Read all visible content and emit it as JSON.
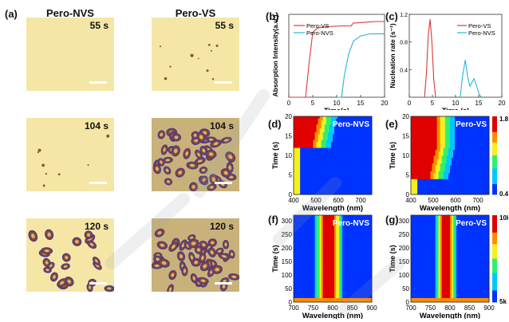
{
  "panel_a": {
    "label": "(a)",
    "columns": [
      "Pero-NVS",
      "Pero-VS"
    ],
    "rows": [
      {
        "time": "55 s",
        "nvs_crystal_coverage": 0.0,
        "vs_crystal_coverage": 0.05
      },
      {
        "time": "104 s",
        "nvs_crystal_coverage": 0.02,
        "vs_crystal_coverage": 0.9
      },
      {
        "time": "120 s",
        "nvs_crystal_coverage": 0.6,
        "vs_crystal_coverage": 0.95
      }
    ]
  },
  "panel_labels": {
    "b": "(b)",
    "c": "(c)",
    "d": "(d)",
    "e": "(e)",
    "f": "(f)",
    "g": "(g)"
  },
  "chart_data": [
    {
      "id": "b",
      "type": "line",
      "xlabel": "Time(s)",
      "ylabel": "Absorption Intensity(a.u.)",
      "xlim": [
        0,
        20
      ],
      "xticks": [
        "0",
        "5",
        "10",
        "15",
        "20"
      ],
      "series": [
        {
          "name": "Pero-VS",
          "color": "#d63a3a",
          "points": [
            [
              0,
              0
            ],
            [
              3.5,
              0
            ],
            [
              4.2,
              0.45
            ],
            [
              5,
              0.9
            ],
            [
              6,
              0.96
            ],
            [
              8,
              0.98
            ],
            [
              11,
              0.99
            ],
            [
              13,
              0.99
            ],
            [
              13.5,
              1.03
            ],
            [
              16,
              1.04
            ],
            [
              18,
              1.05
            ],
            [
              20,
              1.05
            ]
          ]
        },
        {
          "name": "Pero-NVS",
          "color": "#27b6d6",
          "points": [
            [
              10,
              0
            ],
            [
              11,
              0
            ],
            [
              11.6,
              0.3
            ],
            [
              12.5,
              0.6
            ],
            [
              13.5,
              0.78
            ],
            [
              15,
              0.85
            ],
            [
              17,
              0.88
            ],
            [
              20,
              0.88
            ]
          ]
        }
      ]
    },
    {
      "id": "c",
      "type": "line",
      "xlabel": "Time (s)",
      "ylabel": "Nucleation rate (s⁻¹)",
      "xlim": [
        0,
        20
      ],
      "ylim": [
        0,
        1.2
      ],
      "xticks": [
        "0",
        "5",
        "10",
        "15",
        "20"
      ],
      "yticks": [
        "0.4",
        "0.8",
        "1.2"
      ],
      "series": [
        {
          "name": "Pero-VS",
          "color": "#d63a3a",
          "points": [
            [
              3.3,
              0
            ],
            [
              3.7,
              0.35
            ],
            [
              4.1,
              0.9
            ],
            [
              4.5,
              1.13
            ],
            [
              4.9,
              0.8
            ],
            [
              5.3,
              0.25
            ],
            [
              5.7,
              0
            ]
          ]
        },
        {
          "name": "Pero-NVS",
          "color": "#27b6d6",
          "points": [
            [
              11,
              0
            ],
            [
              11.5,
              0.3
            ],
            [
              12.1,
              0.54
            ],
            [
              12.6,
              0.3
            ],
            [
              13.1,
              0.16
            ],
            [
              14,
              0.27
            ],
            [
              14.6,
              0.15
            ],
            [
              15.2,
              0.03
            ],
            [
              15.6,
              0
            ]
          ]
        }
      ]
    },
    {
      "id": "d",
      "type": "heatmap",
      "annotation": "Pero-NVS",
      "xlabel": "Wavelength (nm)",
      "ylabel": "Time (s)",
      "xlim": [
        400,
        750
      ],
      "ylim": [
        0,
        20
      ],
      "xticks": [
        "400",
        "500",
        "600",
        "700"
      ],
      "yticks": [
        "0",
        "5",
        "10",
        "15",
        "20"
      ],
      "onset_time": 12
    },
    {
      "id": "e",
      "type": "heatmap",
      "annotation": "Pero-VS",
      "xlabel": "Wavelength (nm)",
      "ylabel": "Time (s)",
      "xlim": [
        400,
        750
      ],
      "ylim": [
        0,
        20
      ],
      "xticks": [
        "400",
        "500",
        "600",
        "700"
      ],
      "yticks": [
        "0",
        "5",
        "10",
        "15",
        "20"
      ],
      "onset_time": 4,
      "colorbar": {
        "max": "1.8",
        "min": "0.4"
      }
    },
    {
      "id": "f",
      "type": "heatmap",
      "annotation": "Pero-NVS",
      "xlabel": "Wavelength (nm)",
      "ylabel": "Time (s)",
      "xlim": [
        700,
        900
      ],
      "ylim": [
        0,
        320
      ],
      "xticks": [
        "700",
        "750",
        "800",
        "850",
        "900"
      ],
      "yticks": [
        "0",
        "50",
        "100",
        "150",
        "200",
        "250",
        "300"
      ],
      "peak_center": 790
    },
    {
      "id": "g",
      "type": "heatmap",
      "annotation": "Pero-VS",
      "xlabel": "Wavelength (nm)",
      "ylabel": "Time (s)",
      "xlim": [
        700,
        900
      ],
      "ylim": [
        0,
        320
      ],
      "xticks": [
        "700",
        "750",
        "800",
        "850",
        "900"
      ],
      "yticks": [
        "0",
        "50",
        "100",
        "150",
        "200",
        "250",
        "300"
      ],
      "peak_center": 790,
      "colorbar": {
        "max": "10k",
        "min": "5k"
      }
    }
  ]
}
